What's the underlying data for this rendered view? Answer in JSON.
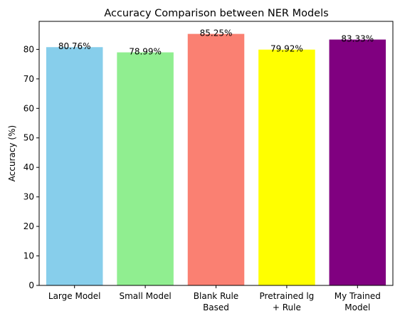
{
  "chart_data": {
    "type": "bar",
    "title": "Accuracy Comparison between NER Models",
    "xlabel": "",
    "ylabel": "Accuracy (%)",
    "ylim": [
      0,
      89.5
    ],
    "yticks": [
      "0",
      "10",
      "20",
      "30",
      "40",
      "50",
      "60",
      "70",
      "80"
    ],
    "categories": [
      [
        "Large Model"
      ],
      [
        "Small Model"
      ],
      [
        "Blank Rule",
        "Based"
      ],
      [
        "Pretrained lg",
        "+ Rule"
      ],
      [
        "My Trained",
        "Model"
      ]
    ],
    "values": [
      80.76,
      78.99,
      85.25,
      79.92,
      83.33
    ],
    "value_labels": [
      "80.76%",
      "78.99%",
      "85.25%",
      "79.92%",
      "83.33%"
    ],
    "colors": [
      "#87ceeb",
      "#90ee90",
      "#fa8072",
      "#ffff00",
      "#800080"
    ],
    "grid": false,
    "legend": "none"
  }
}
